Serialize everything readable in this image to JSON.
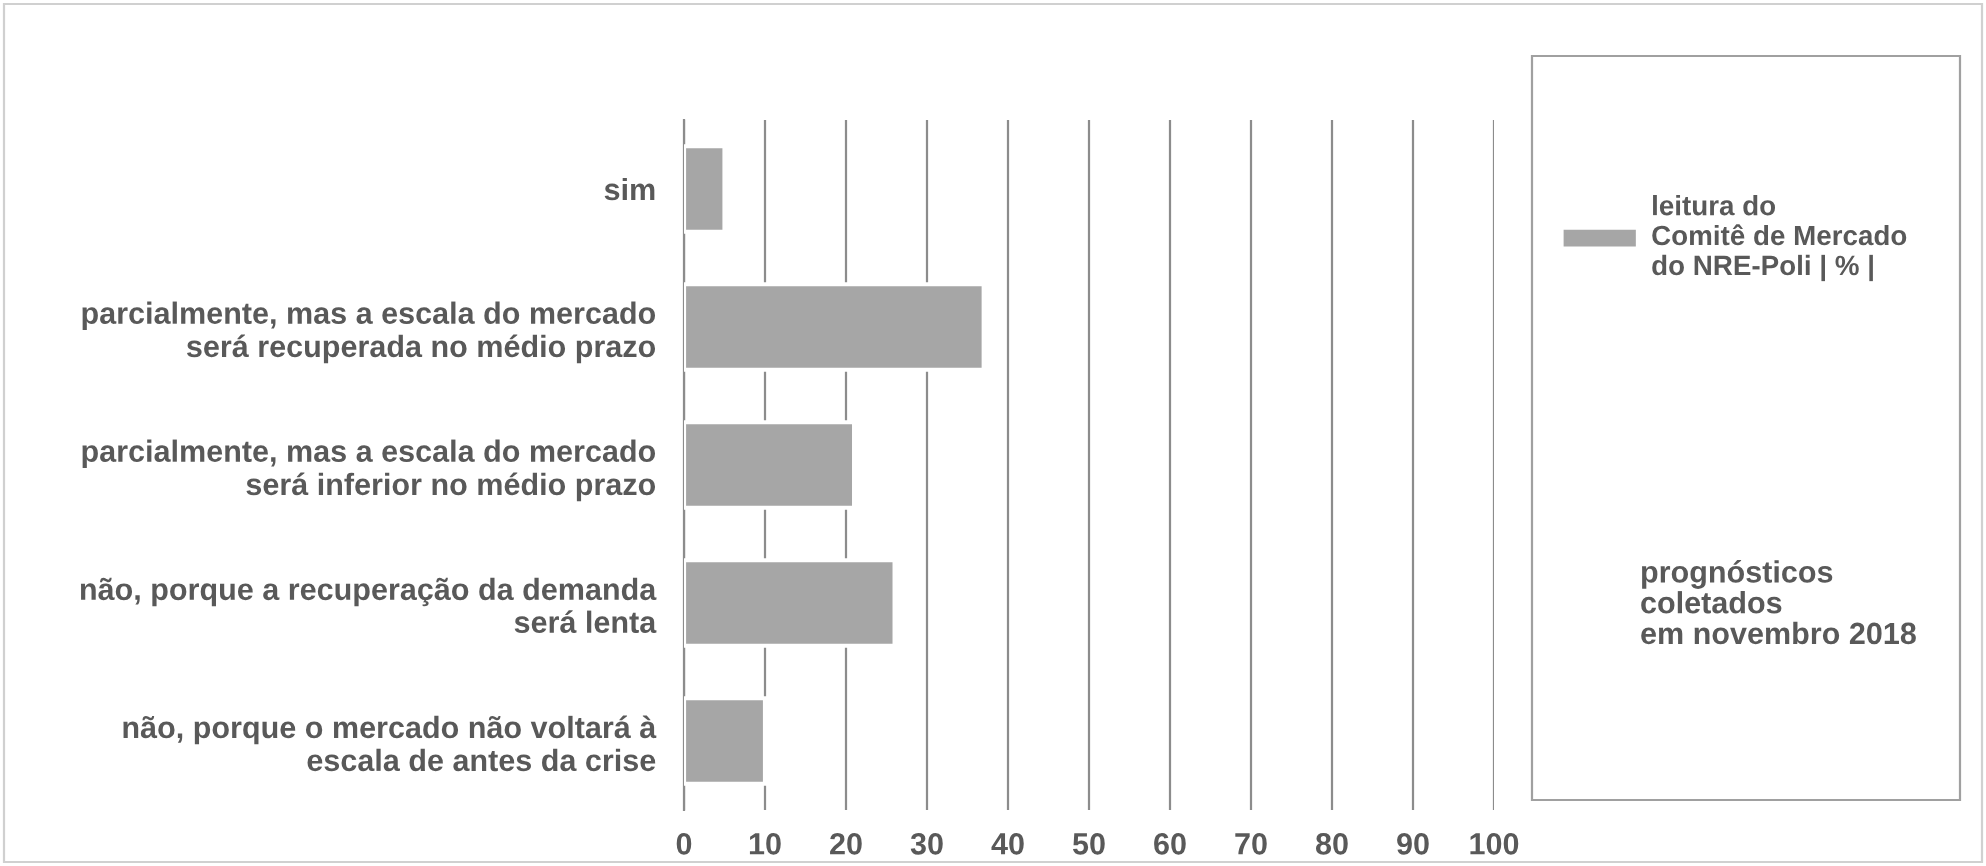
{
  "chart_data": {
    "type": "bar",
    "orientation": "horizontal",
    "categories": [
      "sim",
      "parcialmente, mas a escala do mercado\nserá recuperada no médio prazo",
      "parcialmente, mas a escala do mercado\nserá inferior no médio prazo",
      "não, porque a recuperação da demanda\nserá lenta",
      "não, porque o mercado não voltará à\nescala de antes da crise"
    ],
    "series": [
      {
        "name": "leitura do\nComitê de Mercado\ndo NRE-Poli | % |",
        "color": "#a6a6a6",
        "values": [
          5,
          37,
          21,
          26,
          10
        ]
      }
    ],
    "xlim": [
      0,
      100
    ],
    "xticks": [
      0,
      10,
      20,
      30,
      40,
      50,
      60,
      70,
      80,
      90,
      100
    ],
    "grid": "x",
    "legend": "right",
    "annotations": [
      "prognósticos\ncoletados\nem novembro 2018"
    ]
  }
}
